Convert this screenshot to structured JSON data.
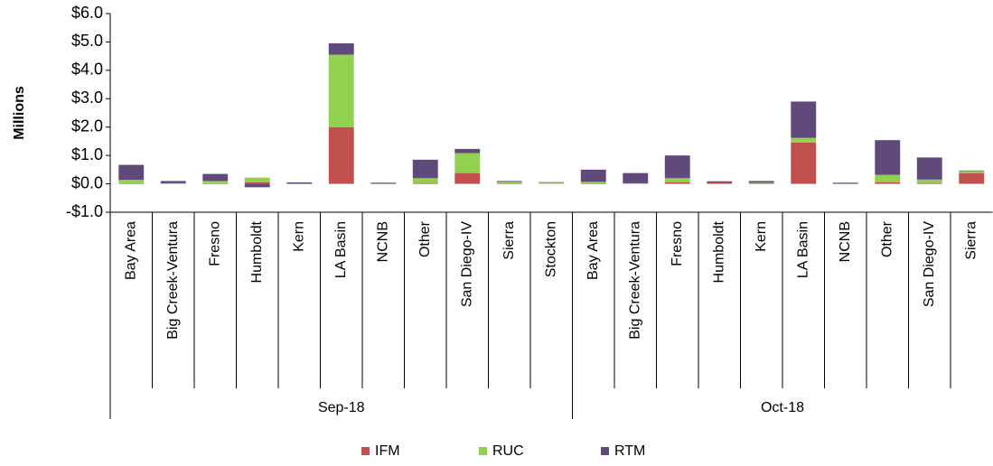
{
  "chart_data": {
    "type": "bar",
    "stacked": true,
    "y_label": "Millions",
    "groups": [
      {
        "name": "Sep-18",
        "categories": [
          "Bay Area",
          "Big Creek-Ventura",
          "Fresno",
          "Humboldt",
          "Kern",
          "LA Basin",
          "NCNB",
          "Other",
          "San Diego-IV",
          "Sierra",
          "Stockton"
        ]
      },
      {
        "name": "Oct-18",
        "categories": [
          "Bay Area",
          "Big Creek-Ventura",
          "Fresno",
          "Humboldt",
          "Kern",
          "LA Basin",
          "NCNB",
          "Other",
          "San Diego-IV",
          "Sierra"
        ]
      }
    ],
    "series": [
      {
        "name": "IFM",
        "color": "#c0504d",
        "values": [
          0.02,
          0,
          0.02,
          0.05,
          0,
          2.0,
          0,
          0.03,
          0.38,
          0.02,
          0,
          0.02,
          0,
          0.05,
          0.05,
          0.02,
          1.45,
          0,
          0.05,
          0.03,
          0.38
        ]
      },
      {
        "name": "RUC",
        "color": "#92d050",
        "values": [
          0.12,
          0.02,
          0.08,
          0.17,
          0,
          2.55,
          0,
          0.17,
          0.7,
          0.05,
          0.04,
          0.05,
          0.02,
          0.15,
          0,
          0.02,
          0.17,
          0,
          0.27,
          0.12,
          0.07
        ]
      },
      {
        "name": "RTM",
        "color": "#604a7b",
        "values": [
          0.53,
          0.08,
          0.25,
          -0.12,
          0.05,
          0.4,
          0.04,
          0.65,
          0.15,
          0.03,
          0.02,
          0.43,
          0.36,
          0.8,
          0.04,
          0.06,
          1.28,
          0.04,
          1.22,
          0.78,
          0.02
        ]
      }
    ],
    "ylim": [
      -1,
      6
    ],
    "yticks": [
      {
        "value": 6,
        "label": "$6.0"
      },
      {
        "value": 5,
        "label": "$5.0"
      },
      {
        "value": 4,
        "label": "$4.0"
      },
      {
        "value": 3,
        "label": "$3.0"
      },
      {
        "value": 2,
        "label": "$2.0"
      },
      {
        "value": 1,
        "label": "$1.0"
      },
      {
        "value": 0,
        "label": "$0.0"
      },
      {
        "value": -1,
        "label": "-$1.0"
      }
    ],
    "legend": "bottom"
  }
}
